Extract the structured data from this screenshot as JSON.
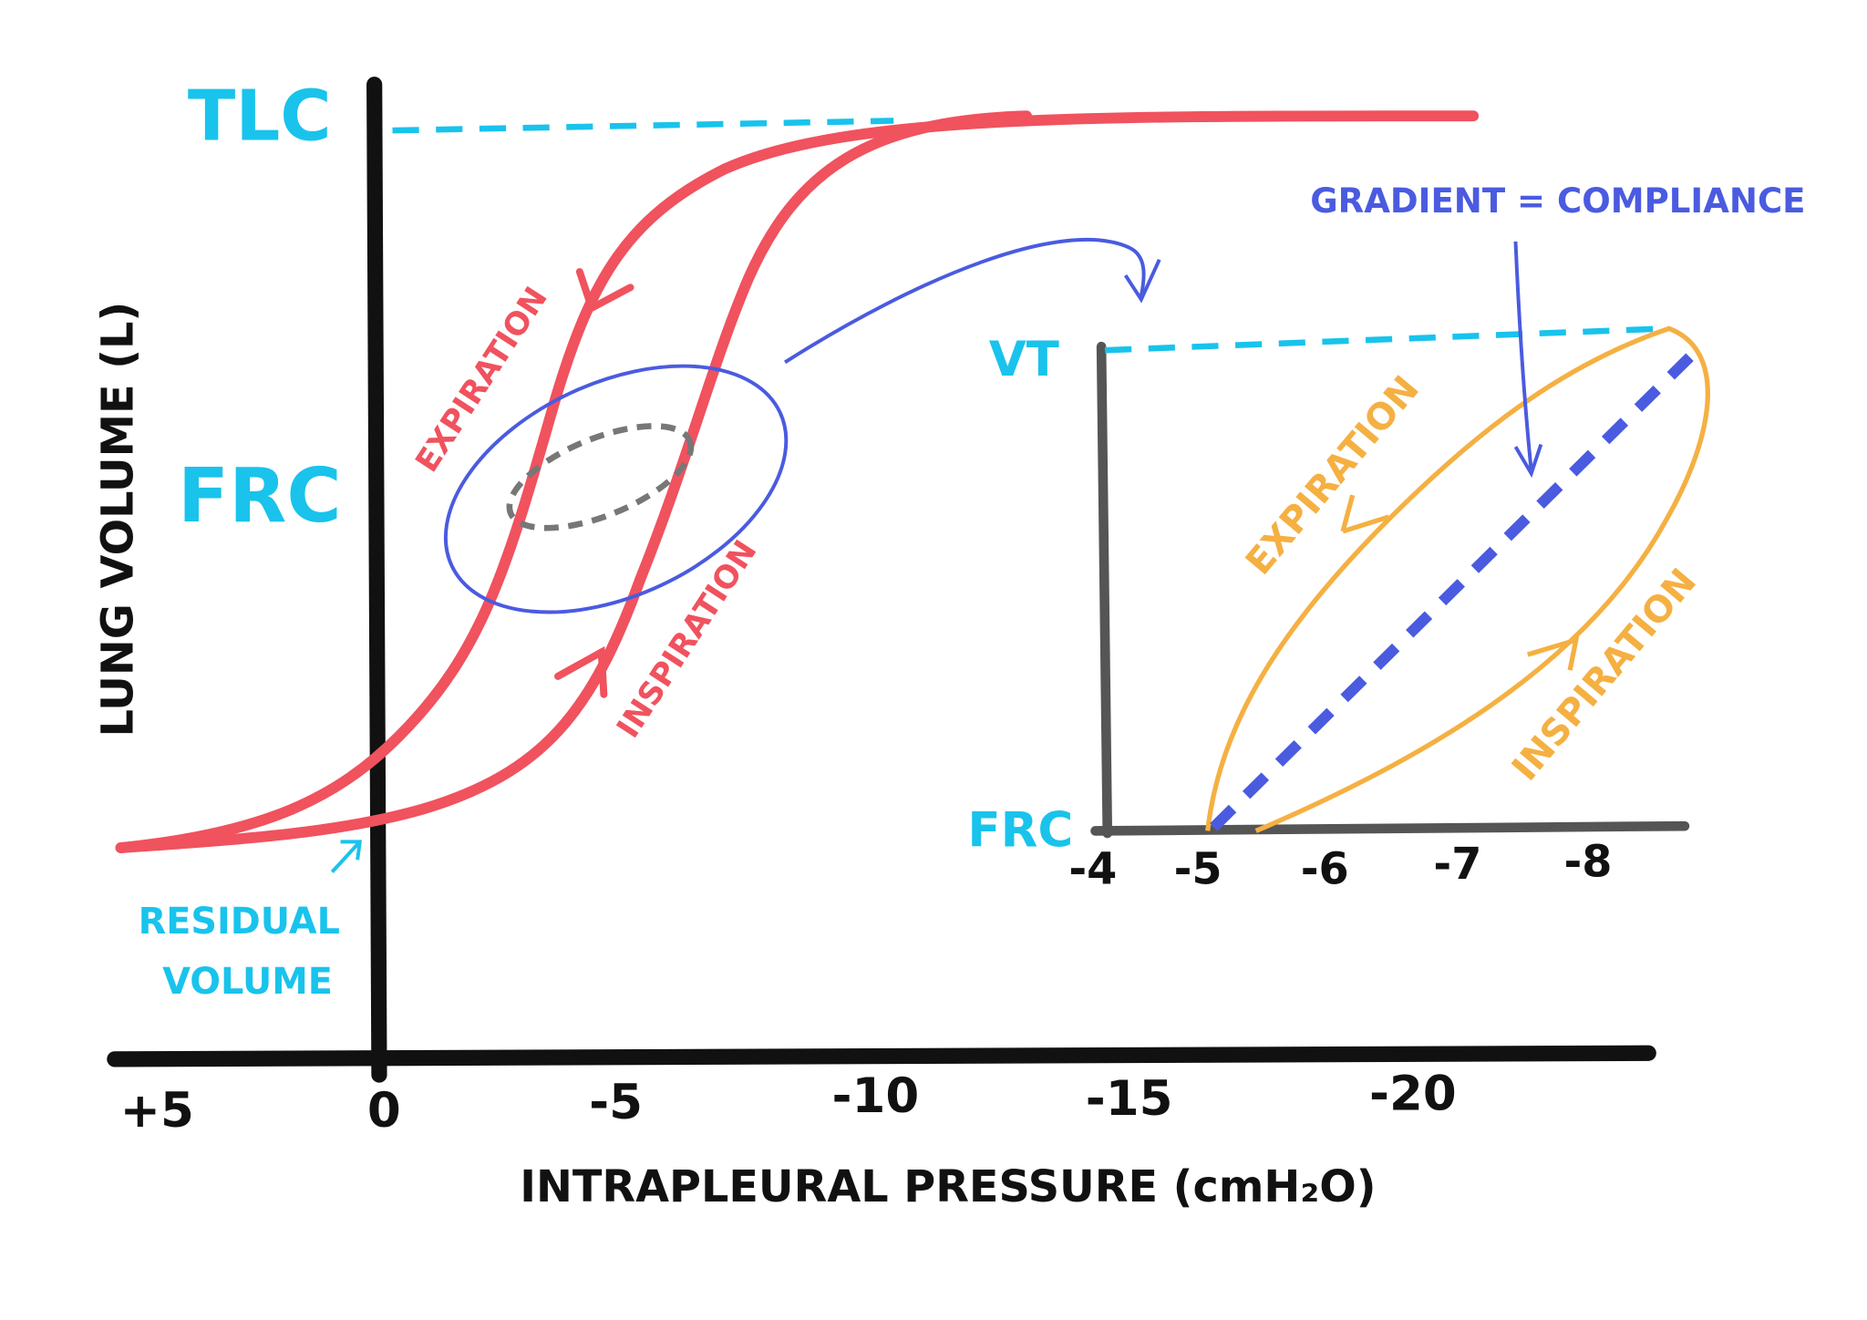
{
  "main": {
    "y_labels": {
      "tlc": "TLC",
      "frc": "FRC"
    },
    "y_axis_label": "LUNG VOLUME (L)",
    "x_ticks": [
      "+5",
      "0",
      "-5",
      "-10",
      "-15",
      "-20"
    ],
    "x_axis_label": "INTRAPLEURAL PRESSURE (cmH₂O)",
    "annotations": {
      "residual_volume": [
        "RESIDUAL",
        "VOLUME"
      ],
      "expiration": "EXPIRATION",
      "inspiration": "INSPIRATION"
    }
  },
  "note": "GRADIENT = COMPLIANCE",
  "inset": {
    "y_labels": {
      "vt": "VT",
      "frc": "FRC"
    },
    "x_ticks": [
      "-4",
      "-5",
      "-6",
      "-7",
      "-8"
    ],
    "annotations": {
      "expiration": "EXPIRATION",
      "inspiration": "INSPIRATION"
    }
  }
}
